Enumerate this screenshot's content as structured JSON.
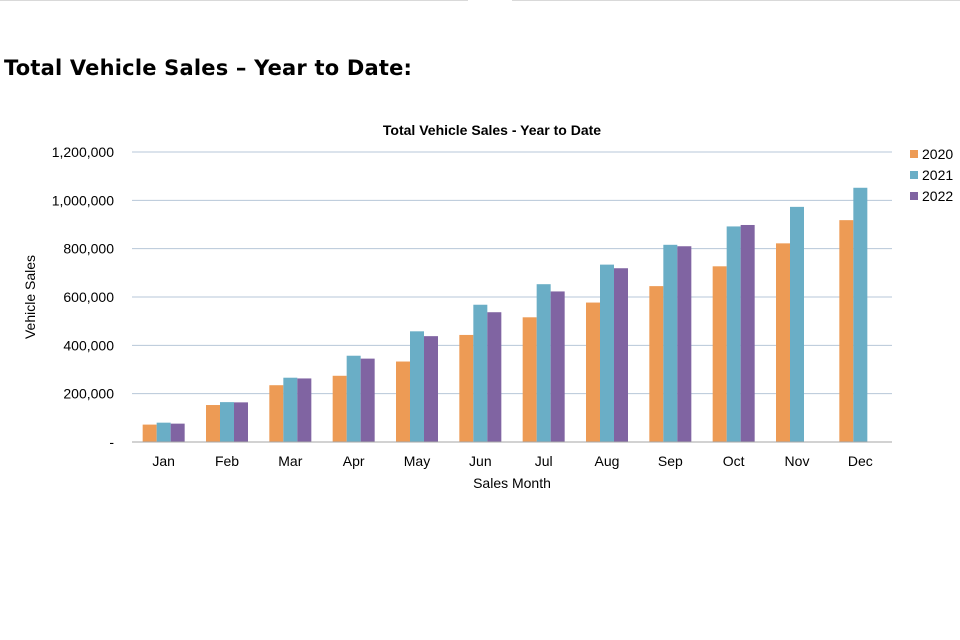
{
  "page": {
    "heading": "Total Vehicle Sales – Year to Date:"
  },
  "chart_data": {
    "type": "bar",
    "title": "Total Vehicle Sales - Year to Date",
    "xlabel": "Sales Month",
    "ylabel": "Vehicle Sales",
    "ylim": [
      0,
      1200000
    ],
    "yticks": [
      0,
      200000,
      400000,
      600000,
      800000,
      1000000,
      1200000
    ],
    "ytick_labels": [
      "-",
      "200,000",
      "400,000",
      "600,000",
      "800,000",
      "1,000,000",
      "1,200,000"
    ],
    "grid": true,
    "legend_position": "right",
    "categories": [
      "Jan",
      "Feb",
      "Mar",
      "Apr",
      "May",
      "Jun",
      "Jul",
      "Aug",
      "Sep",
      "Oct",
      "Nov",
      "Dec"
    ],
    "series": [
      {
        "name": "2020",
        "color": "#ED9B55",
        "values": [
          72000,
          153000,
          235000,
          274000,
          333000,
          443000,
          516000,
          577000,
          645000,
          727000,
          822000,
          918000
        ]
      },
      {
        "name": "2021",
        "color": "#6AAEC6",
        "values": [
          80000,
          165000,
          266000,
          357000,
          458000,
          568000,
          653000,
          734000,
          816000,
          892000,
          973000,
          1052000
        ]
      },
      {
        "name": "2022",
        "color": "#8064A2",
        "values": [
          76000,
          164000,
          263000,
          345000,
          438000,
          537000,
          623000,
          719000,
          810000,
          898000,
          null,
          null
        ]
      }
    ]
  }
}
